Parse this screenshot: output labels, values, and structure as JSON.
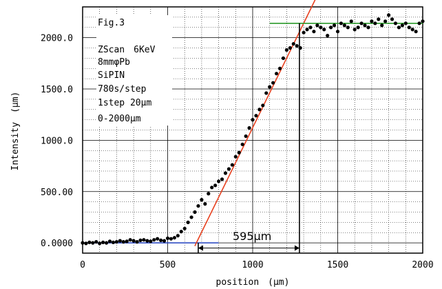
{
  "chart_data": {
    "type": "scatter",
    "title": "",
    "xlabel": "position　(µm)",
    "ylabel": "Intensity　(µm)",
    "xlim": [
      0,
      2000
    ],
    "ylim": [
      -100,
      2300
    ],
    "grid": true,
    "xticks": [
      {
        "value": 0,
        "label": "0"
      },
      {
        "value": 500,
        "label": "500"
      },
      {
        "value": 1000,
        "label": "1000"
      },
      {
        "value": 1500,
        "label": "1500"
      },
      {
        "value": 2000,
        "label": "2000"
      }
    ],
    "yticks": [
      {
        "value": 0,
        "label": "0.0000"
      },
      {
        "value": 500,
        "label": "500.00"
      },
      {
        "value": 1000,
        "label": "1000.0"
      },
      {
        "value": 1500,
        "label": "1500.0"
      },
      {
        "value": 2000,
        "label": "2000.0"
      }
    ],
    "annotations": [
      "Fig.3",
      "ZScan　6KeV",
      "8mmφPb",
      "SiPIN",
      "780s/step",
      "1step 20µm",
      "0-2000µm"
    ],
    "measurement_label": "595µm",
    "series": [
      {
        "marker": "filled-circle",
        "color": "#000000",
        "x": [
          0,
          20,
          40,
          60,
          80,
          100,
          120,
          140,
          160,
          180,
          200,
          220,
          240,
          260,
          280,
          300,
          320,
          340,
          360,
          380,
          400,
          420,
          440,
          460,
          480,
          500,
          520,
          540,
          560,
          580,
          600,
          620,
          640,
          660,
          680,
          700,
          720,
          740,
          760,
          780,
          800,
          820,
          840,
          860,
          880,
          900,
          920,
          940,
          960,
          980,
          1000,
          1020,
          1040,
          1060,
          1080,
          1100,
          1120,
          1140,
          1160,
          1180,
          1200,
          1220,
          1240,
          1260,
          1280,
          1300,
          1320,
          1340,
          1360,
          1380,
          1400,
          1420,
          1440,
          1460,
          1480,
          1500,
          1520,
          1540,
          1560,
          1580,
          1600,
          1620,
          1640,
          1660,
          1680,
          1700,
          1720,
          1740,
          1760,
          1780,
          1800,
          1820,
          1840,
          1860,
          1880,
          1900,
          1920,
          1940,
          1960,
          1980,
          2000
        ],
        "y": [
          0,
          -5,
          5,
          0,
          10,
          -5,
          5,
          0,
          15,
          5,
          10,
          20,
          10,
          15,
          30,
          20,
          10,
          25,
          30,
          20,
          15,
          30,
          40,
          25,
          20,
          45,
          40,
          50,
          70,
          110,
          140,
          200,
          250,
          300,
          360,
          420,
          380,
          480,
          540,
          560,
          600,
          620,
          680,
          720,
          760,
          840,
          880,
          960,
          1040,
          1120,
          1200,
          1240,
          1300,
          1340,
          1460,
          1520,
          1560,
          1650,
          1700,
          1800,
          1880,
          1900,
          1940,
          1920,
          1900,
          2050,
          2080,
          2100,
          2060,
          2120,
          2100,
          2080,
          2020,
          2100,
          2120,
          2060,
          2140,
          2120,
          2100,
          2160,
          2080,
          2100,
          2140,
          2120,
          2100,
          2160,
          2140,
          2180,
          2120,
          2160,
          2220,
          2180,
          2140,
          2100,
          2120,
          2140,
          2100,
          2080,
          2060,
          2140,
          2160
        ]
      }
    ],
    "fit_lines": [
      {
        "color": "#1f3fbf",
        "x": [
          0,
          800
        ],
        "y": [
          0,
          0
        ]
      },
      {
        "color": "#e8401e",
        "x": [
          660,
          1400
        ],
        "y": [
          -30,
          2480
        ]
      },
      {
        "color": "#2a9a2a",
        "x": [
          1100,
          2000
        ],
        "y": [
          2140,
          2140
        ]
      }
    ],
    "markers": [
      {
        "color": "#000000",
        "x": 680,
        "style": "vertical"
      },
      {
        "color": "#000000",
        "x": 1275,
        "style": "vertical"
      }
    ],
    "measurement_arrow": {
      "x": [
        680,
        1275
      ],
      "y": -50
    }
  }
}
